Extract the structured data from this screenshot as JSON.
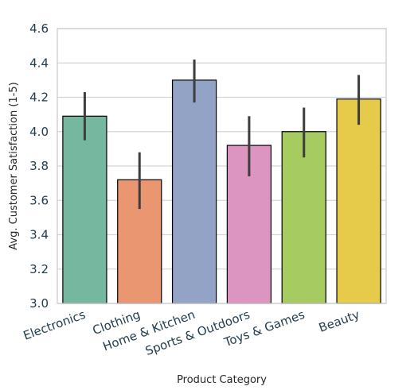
{
  "chart_data": {
    "type": "bar",
    "categories": [
      "Electronics",
      "Clothing",
      "Home & Kitchen",
      "Sports & Outdoors",
      "Toys & Games",
      "Beauty"
    ],
    "values": [
      4.09,
      3.72,
      4.3,
      3.92,
      4.0,
      4.19
    ],
    "error_low": [
      3.95,
      3.55,
      4.17,
      3.74,
      3.85,
      4.04
    ],
    "error_high": [
      4.23,
      3.88,
      4.42,
      4.09,
      4.14,
      4.33
    ],
    "colors": [
      "#76b7a0",
      "#ea9671",
      "#92a3c5",
      "#db95c0",
      "#a5cb61",
      "#e6cb4a"
    ],
    "title": "",
    "xlabel": "Product Category",
    "ylabel": "Avg. Customer Satisfaction (1-5)",
    "ylim": [
      3.0,
      4.6
    ],
    "yticks": [
      "3.0",
      "3.2",
      "3.4",
      "3.6",
      "3.8",
      "4.0",
      "4.2",
      "4.4",
      "4.6"
    ],
    "grid": "horizontal",
    "legend": "none"
  }
}
